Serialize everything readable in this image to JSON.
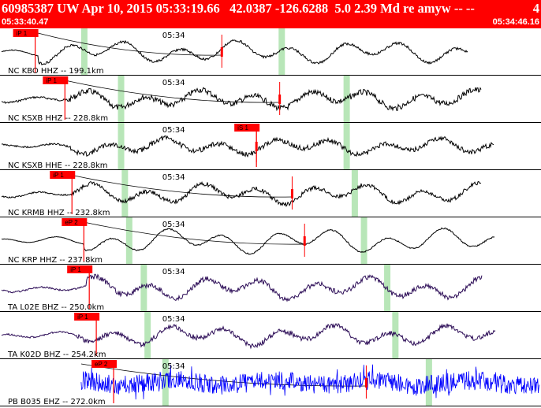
{
  "header": {
    "title": "60985387 UW Apr 10, 2015 05:33:19.66   42.0387 -126.6288  5.0 2.39 Md re amyw -- --",
    "page_index": "4",
    "start_time": "05:33:40.47",
    "end_time": "05:34:46.16"
  },
  "colors": {
    "header_bg": "#ff0000",
    "trace_black": "#000000",
    "trace_dark_purple": "#2a0a55",
    "trace_blue": "#0000ff",
    "pick_marker": "#ff0000",
    "window_band": "#b8e6b8"
  },
  "traces": [
    {
      "station_label": "NC KBO HHZ -- 199.1km",
      "time_label": "05:34",
      "pick_label": "iP 1",
      "color": "trace_black",
      "style": "smooth",
      "amp": 0.55,
      "noise": 0.15,
      "onset": 0.07,
      "pick": 0.065,
      "windows": [
        0.15,
        0.515
      ],
      "tick": 0.41,
      "curve": 0.41,
      "seed": 3
    },
    {
      "station_label": "NC KSXB HHZ -- 228.8km",
      "time_label": "05:34",
      "pick_label": "iP 1",
      "color": "trace_black",
      "style": "noisy",
      "amp": 0.45,
      "noise": 0.35,
      "onset": 0.12,
      "pick": 0.12,
      "windows": [
        0.218,
        0.635
      ],
      "tick": 0.517,
      "curve": 0.517,
      "seed": 7
    },
    {
      "station_label": "NC KSXB HHE -- 228.8km",
      "time_label": "05:34",
      "pick_label": "iS 1",
      "color": "trace_black",
      "style": "noisy",
      "amp": 0.4,
      "noise": 0.3,
      "onset": 0.13,
      "pick": 0.474,
      "windows": [
        0.218,
        0.635
      ],
      "tick": 0.474,
      "curve": null,
      "seed": 11
    },
    {
      "station_label": "NC KRMB HHZ -- 232.8km",
      "time_label": "05:34",
      "pick_label": "iP 1",
      "color": "trace_black",
      "style": "noisy",
      "amp": 0.5,
      "noise": 0.25,
      "onset": 0.13,
      "pick": 0.133,
      "windows": [
        0.225,
        0.65
      ],
      "tick": 0.54,
      "curve": 0.54,
      "seed": 13
    },
    {
      "station_label": "NC KRP HHZ -- 237.8km",
      "time_label": "05:34",
      "pick_label": "eP 2",
      "color": "trace_black",
      "style": "smooth",
      "amp": 0.6,
      "noise": 0.08,
      "onset": 0.155,
      "pick": 0.155,
      "windows": [
        0.233,
        0.667
      ],
      "tick": 0.563,
      "curve": 0.563,
      "seed": 17
    },
    {
      "station_label": "TA L02E BHZ -- 250.0km",
      "time_label": "05:34",
      "pick_label": "iP 1",
      "color": "trace_dark_purple",
      "style": "noisy",
      "amp": 0.55,
      "noise": 0.3,
      "onset": 0.16,
      "pick": 0.165,
      "windows": [
        0.26,
        0.71
      ],
      "tick": null,
      "curve": null,
      "seed": 19
    },
    {
      "station_label": "TA K02D BHZ -- 254.2km",
      "time_label": "05:34",
      "pick_label": "iP 1",
      "color": "trace_dark_purple",
      "style": "noisy",
      "amp": 0.5,
      "noise": 0.3,
      "onset": 0.14,
      "pick": 0.178,
      "windows": [
        0.267,
        0.725
      ],
      "tick": null,
      "curve": null,
      "seed": 23
    },
    {
      "station_label": "PB B035 EHZ -- 272.0km",
      "time_label": "05:34",
      "pick_label": "eP 2",
      "color": "trace_blue",
      "style": "burst",
      "amp": 0.8,
      "noise": 0.2,
      "onset": 0.15,
      "pick": 0.21,
      "windows": [
        0.3,
        0.787
      ],
      "tick": 0.677,
      "curve": 0.677,
      "seed": 29
    }
  ]
}
